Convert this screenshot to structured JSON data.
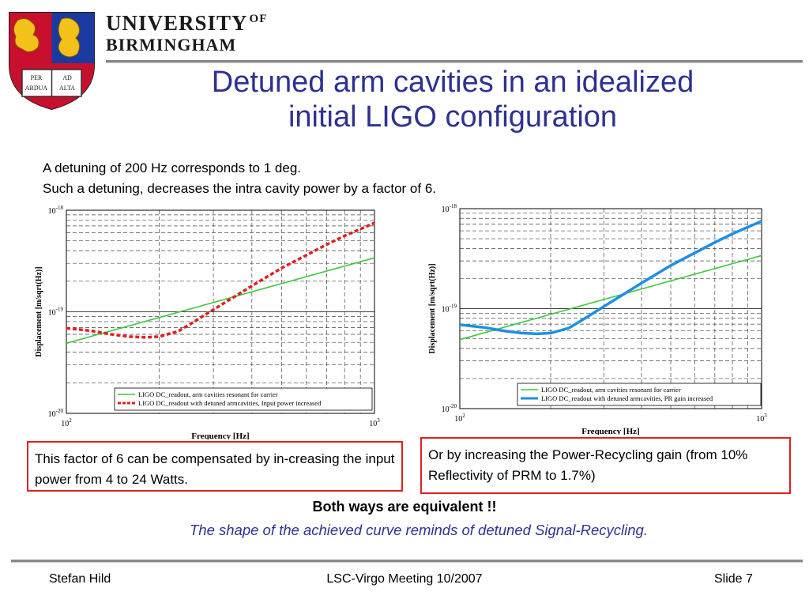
{
  "header": {
    "university_line1": "UNIVERSITY",
    "university_of": "OF",
    "university_line2": "BIRMINGHAM",
    "crest_text": [
      "PER",
      "AD",
      "ARDUA",
      "ALTA"
    ]
  },
  "slide": {
    "title_line1": "Detuned arm cavities in an idealized",
    "title_line2": "initial LIGO configuration",
    "intro_line1": "A detuning of 200 Hz corresponds to 1 deg.",
    "intro_line2": "Such a detuning, decreases the intra cavity power by a factor of 6.",
    "box_left": "This factor of 6 can be compensated by in-creasing the input power from 4 to 24 Watts.",
    "box_right": "Or by increasing the Power-Recycling  gain (from 10% Reflectivity of PRM to 1.7%)",
    "both_ways": "Both ways are equivalent !!",
    "shape_note": "The shape of the achieved curve reminds of detuned Signal-Recycling."
  },
  "footer": {
    "author": "Stefan Hild",
    "meeting": "LSC-Virgo Meeting 10/2007",
    "slide_number": "Slide 7"
  },
  "colors": {
    "title": "#2e3192",
    "green_curve": "#3cc83c",
    "red_curve": "#e02020",
    "blue_curve": "#1e90e6",
    "box_border": "#d22222"
  },
  "chart_data": [
    {
      "type": "line",
      "xlabel": "Frequency [Hz]",
      "ylabel": "Displacement [m/sqrt(Hz)]",
      "xscale": "log",
      "yscale": "log",
      "xlim": [
        100,
        1000
      ],
      "ylim": [
        1e-20,
        1e-18
      ],
      "xticks": [
        "10^2",
        "10^3"
      ],
      "yticks": [
        "10^-20",
        "10^-19",
        "10^-18"
      ],
      "grid": true,
      "legend_position": "bottom-right",
      "series": [
        {
          "name": "LIGO DC_readout, arm cavities resonant for carrier",
          "style": "solid",
          "color": "green",
          "x": [
            100,
            1000
          ],
          "y": [
            4.9e-20,
            3.4e-19
          ]
        },
        {
          "name": "LIGO DC_readout with detuned armcavities, Input power increased",
          "style": "dotted",
          "color": "red",
          "x": [
            100,
            120,
            140,
            160,
            180,
            200,
            230,
            260,
            300,
            350,
            400,
            500,
            600,
            700,
            800,
            1000
          ],
          "y": [
            6.9e-20,
            6.5e-20,
            6e-20,
            5.7e-20,
            5.6e-20,
            5.7e-20,
            6.4e-20,
            8e-20,
            1.05e-19,
            1.4e-19,
            1.8e-19,
            2.7e-19,
            3.6e-19,
            4.6e-19,
            5.6e-19,
            7.5e-19
          ]
        }
      ]
    },
    {
      "type": "line",
      "xlabel": "Frequency [Hz]",
      "ylabel": "Displacement [m/sqrt(Hz)]",
      "xscale": "log",
      "yscale": "log",
      "xlim": [
        100,
        1000
      ],
      "ylim": [
        1e-20,
        1e-18
      ],
      "xticks": [
        "10^2",
        "10^3"
      ],
      "yticks": [
        "10^-20",
        "10^-19",
        "10^-18"
      ],
      "grid": true,
      "legend_position": "bottom-right",
      "series": [
        {
          "name": "LIGO DC_readout, arm cavities resonant for carrier",
          "style": "solid",
          "color": "green",
          "x": [
            100,
            1000
          ],
          "y": [
            4.9e-20,
            3.4e-19
          ]
        },
        {
          "name": "LIGO DC_readout with detuned armcavities, PR gain increased",
          "style": "solid",
          "color": "blue",
          "x": [
            100,
            120,
            140,
            160,
            180,
            200,
            230,
            260,
            300,
            350,
            400,
            500,
            600,
            700,
            800,
            1000
          ],
          "y": [
            6.9e-20,
            6.5e-20,
            6e-20,
            5.7e-20,
            5.6e-20,
            5.7e-20,
            6.4e-20,
            8e-20,
            1.05e-19,
            1.4e-19,
            1.8e-19,
            2.7e-19,
            3.6e-19,
            4.6e-19,
            5.6e-19,
            7.5e-19
          ]
        }
      ]
    }
  ]
}
